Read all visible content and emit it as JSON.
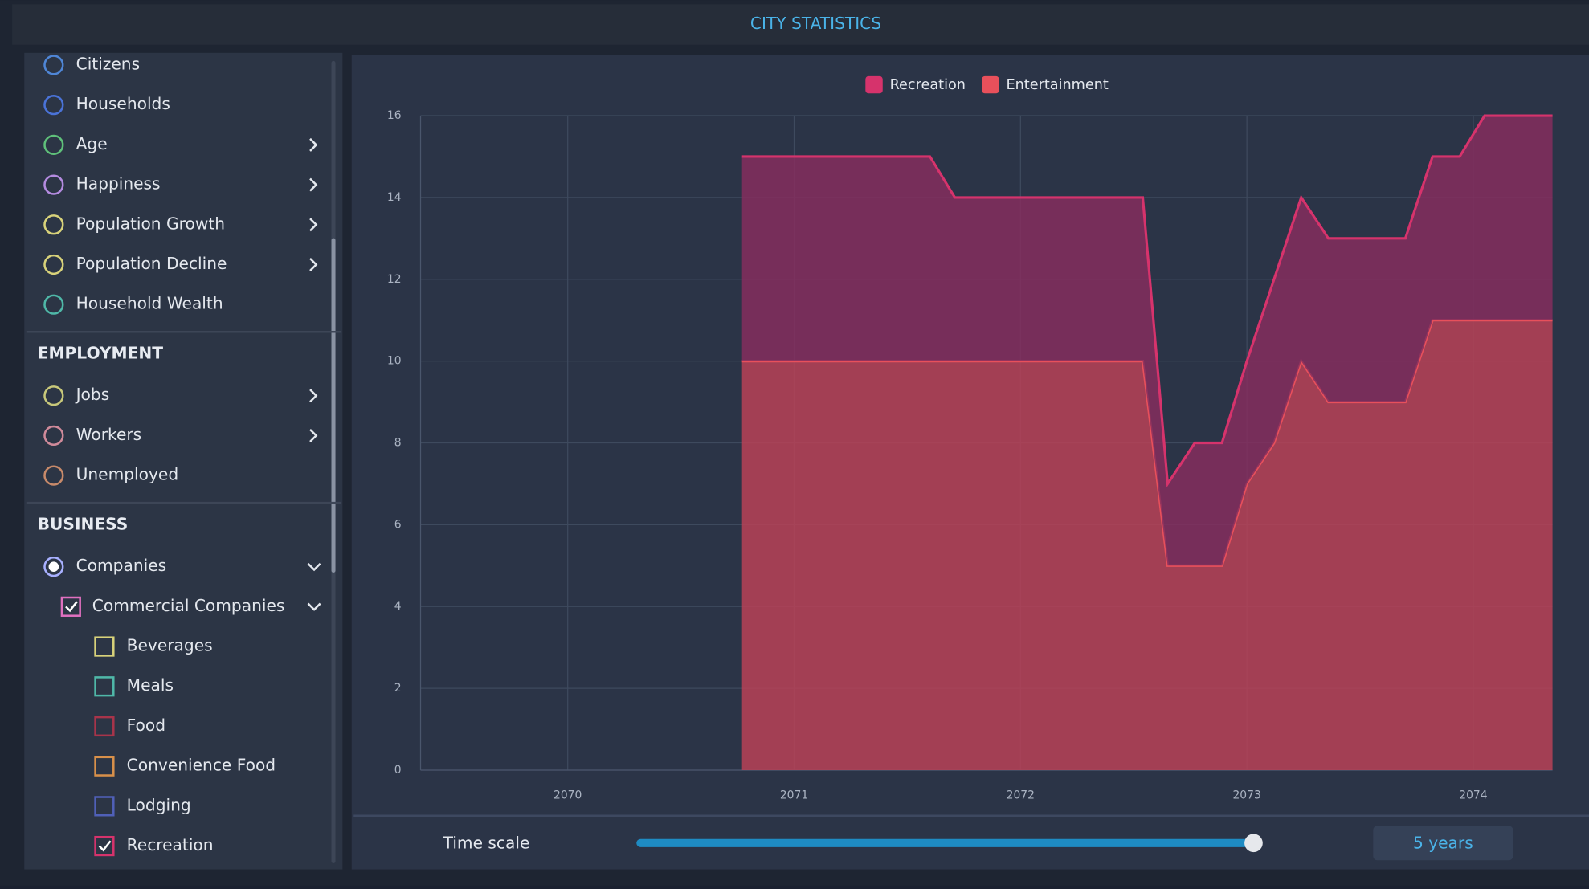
{
  "window": {
    "title": "CITY STATISTICS"
  },
  "sidebar": {
    "groups": [
      {
        "items": [
          {
            "label": "Citizens",
            "marker": "circle",
            "color": "#4f86d6",
            "level": 0
          },
          {
            "label": "Households",
            "marker": "circle",
            "color": "#4a73d8",
            "level": 0
          },
          {
            "label": "Age",
            "marker": "circle",
            "color": "#5fc07a",
            "level": 0,
            "expander": "right"
          },
          {
            "label": "Happiness",
            "marker": "circle",
            "color": "#b48be0",
            "level": 0,
            "expander": "right"
          },
          {
            "label": "Population Growth",
            "marker": "circle",
            "color": "#d8d27a",
            "level": 0,
            "expander": "right"
          },
          {
            "label": "Population Decline",
            "marker": "circle",
            "color": "#d8d27a",
            "level": 0,
            "expander": "right"
          },
          {
            "label": "Household Wealth",
            "marker": "circle",
            "color": "#4fb8a8",
            "level": 0
          }
        ]
      },
      {
        "heading": "EMPLOYMENT",
        "items": [
          {
            "label": "Jobs",
            "marker": "circle",
            "color": "#c8c87a",
            "level": 0,
            "expander": "right"
          },
          {
            "label": "Workers",
            "marker": "circle",
            "color": "#d08a9a",
            "level": 0,
            "expander": "right"
          },
          {
            "label": "Unemployed",
            "marker": "circle",
            "color": "#c88a6a",
            "level": 0
          }
        ]
      },
      {
        "heading": "BUSINESS",
        "items": [
          {
            "label": "Companies",
            "marker": "radio",
            "color": "#a8b0ff",
            "level": 0,
            "checked": true,
            "expander": "down"
          },
          {
            "label": "Commercial Companies",
            "marker": "checkbox",
            "color": "#e070c0",
            "level": 1,
            "checked": true,
            "expander": "down"
          },
          {
            "label": "Beverages",
            "marker": "checkbox",
            "color": "#d8d27a",
            "level": 2
          },
          {
            "label": "Meals",
            "marker": "checkbox",
            "color": "#4fb8a8",
            "level": 2
          },
          {
            "label": "Food",
            "marker": "checkbox",
            "color": "#a8344a",
            "level": 2
          },
          {
            "label": "Convenience Food",
            "marker": "checkbox",
            "color": "#d8904a",
            "level": 2
          },
          {
            "label": "Lodging",
            "marker": "checkbox",
            "color": "#5060b8",
            "level": 2
          },
          {
            "label": "Recreation",
            "marker": "checkbox",
            "color": "#d6336c",
            "level": 2,
            "checked": true
          }
        ]
      }
    ]
  },
  "chart_data": {
    "type": "stacked-area",
    "x": [
      2070.77,
      2071.6,
      2071.71,
      2072.54,
      2072.65,
      2072.77,
      2072.89,
      2073.0,
      2073.12,
      2073.24,
      2073.36,
      2073.7,
      2073.82,
      2073.94,
      2074.05,
      2074.35
    ],
    "series": [
      {
        "name": "Entertainment",
        "color": "#e8505b",
        "fill": "#b94257",
        "values": [
          10,
          10,
          10,
          10,
          5,
          5,
          5,
          7,
          8,
          10,
          9,
          9,
          11,
          11,
          11,
          11
        ]
      },
      {
        "name": "Recreation",
        "color": "#d6336c",
        "fill": "#852e5e",
        "values": [
          5,
          5,
          4,
          4,
          2,
          3,
          3,
          3,
          4,
          4,
          4,
          4,
          4,
          4,
          5,
          5
        ]
      }
    ],
    "legend_order": [
      1,
      0
    ],
    "xlim": [
      2069.35,
      2074.35
    ],
    "xticks": [
      2070,
      2071,
      2072,
      2073,
      2074
    ],
    "ylim": [
      0,
      16
    ],
    "yticks": [
      0,
      2,
      4,
      6,
      8,
      10,
      12,
      14,
      16
    ],
    "grid": true
  },
  "time_scale": {
    "label": "Time scale",
    "value_label": "5 years"
  }
}
